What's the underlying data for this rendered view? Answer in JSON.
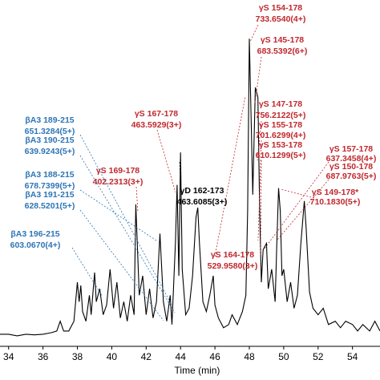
{
  "chart_data": {
    "type": "line",
    "x_label": "Time (min)",
    "xlim": [
      33.5,
      55.6
    ],
    "ylim": [
      0,
      100
    ],
    "xticks": [
      34,
      36,
      38,
      40,
      42,
      44,
      46,
      48,
      50,
      52,
      54
    ],
    "x": [
      33.5,
      34,
      34.5,
      35,
      35.5,
      36,
      36.5,
      36.8,
      37,
      37.2,
      37.5,
      37.8,
      38,
      38.1,
      38.2,
      38.3,
      38.5,
      38.7,
      38.8,
      39,
      39.1,
      39.3,
      39.5,
      39.7,
      39.9,
      40.1,
      40.3,
      40.5,
      40.7,
      40.9,
      41.1,
      41.3,
      41.4,
      41.6,
      41.8,
      42,
      42.2,
      42.4,
      42.6,
      42.8,
      43,
      43.2,
      43.4,
      43.5,
      43.7,
      43.8,
      43.9,
      44,
      44.1,
      44.3,
      44.5,
      44.7,
      44.9,
      45,
      45.1,
      45.3,
      45.5,
      45.7,
      45.9,
      46,
      46.2,
      46.5,
      46.8,
      47,
      47.3,
      47.6,
      47.8,
      47.9,
      48,
      48.1,
      48.2,
      48.35,
      48.5,
      48.6,
      48.7,
      48.8,
      49,
      49.1,
      49.3,
      49.5,
      49.6,
      49.7,
      49.8,
      49.9,
      50,
      50.2,
      50.4,
      50.6,
      50.8,
      51,
      51.2,
      51.3,
      51.5,
      51.7,
      52,
      52.3,
      52.6,
      53,
      53.3,
      53.6,
      54,
      54.3,
      54.6,
      55,
      55.3,
      55.6
    ],
    "series": [
      {
        "color": "#000000",
        "values": [
          2,
          2,
          1.5,
          2,
          1.8,
          2,
          2.5,
          3,
          6,
          3,
          3,
          6,
          18,
          12,
          17,
          9,
          6,
          14,
          8,
          21,
          12,
          16,
          8,
          11,
          22,
          10,
          18,
          7,
          12,
          6,
          14,
          8,
          42,
          14,
          20,
          8,
          16,
          7,
          12,
          33,
          12,
          6,
          14,
          5,
          30,
          48,
          20,
          58,
          22,
          8,
          10,
          20,
          38,
          41,
          30,
          12,
          9,
          14,
          20,
          11,
          7,
          4,
          5,
          8,
          5,
          9,
          14,
          40,
          93,
          70,
          45,
          78,
          75,
          40,
          18,
          28,
          30,
          16,
          22,
          12,
          30,
          47,
          40,
          20,
          22,
          12,
          18,
          10,
          14,
          30,
          43,
          35,
          15,
          10,
          8,
          10,
          5,
          6,
          4,
          6,
          5,
          3,
          5,
          3,
          6,
          3
        ]
      }
    ],
    "annotations": [
      {
        "label": "γS 154-178",
        "mz": "733.6540(4+)",
        "color": "#c0282d"
      },
      {
        "label": "γS 145-178",
        "mz": "683.5392(6+)",
        "color": "#c0282d"
      },
      {
        "label": "γS 147-178",
        "mz": "756.2122(5+)",
        "color": "#c0282d"
      },
      {
        "label": "γS 155-178",
        "mz": "701.6299(4+)",
        "color": "#c0282d"
      },
      {
        "label": "γS 153-178",
        "mz": "610.1299(5+)",
        "color": "#c0282d"
      },
      {
        "label": "γS 157-178",
        "mz": "637.3458(4+)",
        "color": "#c0282d"
      },
      {
        "label": "γS 150-178",
        "mz": "687.9763(5+)",
        "color": "#c0282d"
      },
      {
        "label": "γS 149-178*",
        "mz": "710.1830(5+)",
        "color": "#c0282d"
      },
      {
        "label": "γS 164-178",
        "mz": "529.9580(3+)",
        "color": "#c0282d"
      },
      {
        "label": "γD 162-173",
        "mz": "463.6085(3+)",
        "color": "#000000"
      },
      {
        "label": "γS 167-178",
        "mz": "463.5929(3+)",
        "color": "#c0282d"
      },
      {
        "label": "γS 169-178",
        "mz": "402.2313(3+)",
        "color": "#c0282d"
      },
      {
        "label": "βA3 189-215",
        "mz": "651.3284(5+)",
        "color": "#2e75b6"
      },
      {
        "label": "βA3 190-215",
        "mz": "639.9243(5+)",
        "color": "#2e75b6"
      },
      {
        "label": "βA3 188-215",
        "mz": "678.7399(5+)",
        "color": "#2e75b6"
      },
      {
        "label": "βA3 191-215",
        "mz": "628.5201(5+)",
        "color": "#2e75b6"
      },
      {
        "label": "βA3 196-215",
        "mz": "603.0670(4+)",
        "color": "#2e75b6"
      }
    ]
  }
}
